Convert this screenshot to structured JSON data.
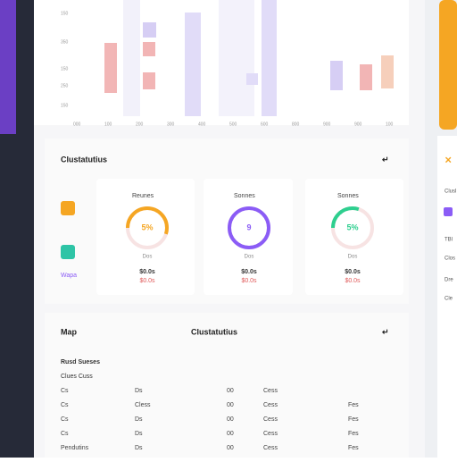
{
  "chart_panel": {
    "y_labels": [
      "150",
      "350",
      "150",
      "250",
      "150"
    ],
    "x_labels": [
      "000",
      "100",
      "200",
      "300",
      "400",
      "500",
      "600",
      "800",
      "900",
      "900",
      "100"
    ]
  },
  "overview": {
    "title": "Clustatutius",
    "action": "↵",
    "side_label": "Wapa",
    "cards": [
      {
        "label": "Reunes",
        "center": "5%",
        "sub": "Dos",
        "amount": "$0.0s",
        "note": "$0.0s"
      },
      {
        "label": "Sonnes",
        "center": "9",
        "sub": "Dos",
        "amount": "$0.0s",
        "note": "$0.0s"
      },
      {
        "label": "Sonnes",
        "center": "5%",
        "sub": "Dos",
        "amount": "$0.0s",
        "note": "$0.0s"
      }
    ]
  },
  "table_section": {
    "title": "Map",
    "subtitle": "Clustatutius",
    "action": "↵",
    "heading": "Rusd Sueses",
    "subheading": "Clues Cuss",
    "rows": [
      [
        "Cs",
        "Ds",
        "00",
        "Cess",
        ""
      ],
      [
        "Cs",
        "Cless",
        "00",
        "Cess",
        "Fes"
      ],
      [
        "Cs",
        "Ds",
        "00",
        "Cess",
        "Fes"
      ],
      [
        "Cs",
        "Ds",
        "00",
        "Cess",
        "Fes"
      ],
      [
        "Pendutins",
        "Ds",
        "00",
        "Cess",
        "Fes"
      ]
    ]
  },
  "side_panel": {
    "labels": [
      "Clusl",
      "TBl",
      "Clos",
      "Dre",
      "Cle"
    ]
  }
}
